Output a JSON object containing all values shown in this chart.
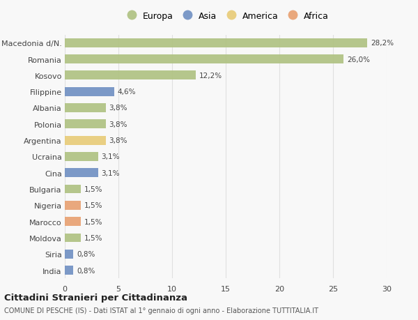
{
  "countries": [
    "Macedonia d/N.",
    "Romania",
    "Kosovo",
    "Filippine",
    "Albania",
    "Polonia",
    "Argentina",
    "Ucraina",
    "Cina",
    "Bulgaria",
    "Nigeria",
    "Marocco",
    "Moldova",
    "Siria",
    "India"
  ],
  "values": [
    28.2,
    26.0,
    12.2,
    4.6,
    3.8,
    3.8,
    3.8,
    3.1,
    3.1,
    1.5,
    1.5,
    1.5,
    1.5,
    0.8,
    0.8
  ],
  "labels": [
    "28,2%",
    "26,0%",
    "12,2%",
    "4,6%",
    "3,8%",
    "3,8%",
    "3,8%",
    "3,1%",
    "3,1%",
    "1,5%",
    "1,5%",
    "1,5%",
    "1,5%",
    "0,8%",
    "0,8%"
  ],
  "colors": [
    "#aec180",
    "#aec180",
    "#aec180",
    "#6f8fc2",
    "#aec180",
    "#aec180",
    "#e8cb76",
    "#aec180",
    "#6f8fc2",
    "#aec180",
    "#e8a070",
    "#e8a070",
    "#aec180",
    "#6f8fc2",
    "#6f8fc2"
  ],
  "legend": [
    {
      "label": "Europa",
      "color": "#aec180"
    },
    {
      "label": "Asia",
      "color": "#6f8fc2"
    },
    {
      "label": "America",
      "color": "#e8cb76"
    },
    {
      "label": "Africa",
      "color": "#e8a070"
    }
  ],
  "title": "Cittadini Stranieri per Cittadinanza",
  "subtitle": "COMUNE DI PESCHE (IS) - Dati ISTAT al 1° gennaio di ogni anno - Elaborazione TUTTITALIA.IT",
  "xlim": [
    0,
    30
  ],
  "xticks": [
    0,
    5,
    10,
    15,
    20,
    25,
    30
  ],
  "background_color": "#f8f8f8",
  "grid_color": "#e0e0e0",
  "bar_height": 0.55
}
